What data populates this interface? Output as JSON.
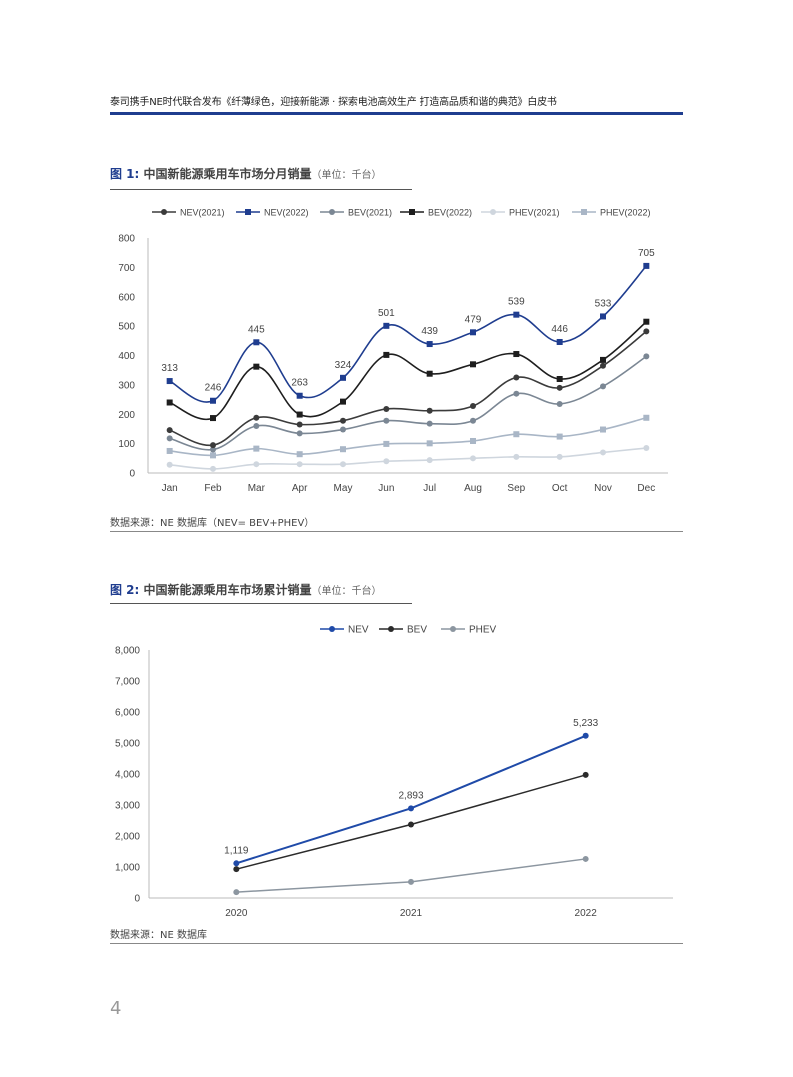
{
  "header": {
    "title": "泰司携手NE时代联合发布《纤薄绿色，迎接新能源 · 探索电池高效生产 打造高品质和谐的典范》白皮书"
  },
  "figure1": {
    "label": "图 1:",
    "title": "中国新能源乘用车市场分月销量",
    "unit": "（单位：千台）",
    "source": "数据来源：NE 数据库（NEV= BEV+PHEV）"
  },
  "figure2": {
    "label": "图 2:",
    "title": "中国新能源乘用车市场累计销量",
    "unit": "（单位：千台）",
    "source": "数据来源：NE 数据库"
  },
  "page_number": "4",
  "colors": {
    "nev2022": "#1f3d8f",
    "nev2021": "#3b3b3b",
    "bev2021": "#7b8794",
    "bev2022": "#1e1e1e",
    "phev2021": "#cfd6de",
    "phev2022": "#a9b6c6",
    "nev": "#1f4aa8",
    "bev": "#2b2b2b",
    "phev": "#8c96a0",
    "accent": "#1f3d8f"
  },
  "chart_data": [
    {
      "type": "line",
      "title": "中国新能源乘用车市场分月销量",
      "categories": [
        "Jan",
        "Feb",
        "Mar",
        "Apr",
        "May",
        "Jun",
        "Jul",
        "Aug",
        "Sep",
        "Oct",
        "Nov",
        "Dec"
      ],
      "ylim": [
        0,
        800
      ],
      "yticks": [
        "0",
        "100",
        "200",
        "300",
        "400",
        "500",
        "600",
        "700",
        "800"
      ],
      "legend": "top",
      "grid": false,
      "series": [
        {
          "name": "NEV(2021)",
          "marker": "circle",
          "labeled": false,
          "values": [
            146,
            95,
            188,
            165,
            178,
            218,
            212,
            228,
            325,
            290,
            365,
            482
          ]
        },
        {
          "name": "NEV(2022)",
          "marker": "square",
          "labeled": true,
          "values": [
            313,
            246,
            445,
            263,
            324,
            501,
            439,
            479,
            539,
            446,
            533,
            705
          ]
        },
        {
          "name": "BEV(2021)",
          "marker": "circle",
          "labeled": false,
          "values": [
            118,
            80,
            160,
            135,
            148,
            178,
            168,
            178,
            270,
            235,
            295,
            397
          ]
        },
        {
          "name": "BEV(2022)",
          "marker": "square",
          "labeled": false,
          "values": [
            240,
            187,
            362,
            199,
            243,
            402,
            338,
            370,
            405,
            320,
            385,
            515
          ]
        },
        {
          "name": "PHEV(2021)",
          "marker": "circle",
          "labeled": false,
          "values": [
            28,
            14,
            30,
            30,
            30,
            40,
            44,
            50,
            55,
            55,
            70,
            85
          ]
        },
        {
          "name": "PHEV(2022)",
          "marker": "square",
          "labeled": false,
          "values": [
            75,
            60,
            83,
            64,
            81,
            99,
            101,
            109,
            132,
            124,
            148,
            188
          ]
        }
      ]
    },
    {
      "type": "line",
      "title": "中国新能源乘用车市场累计销量",
      "categories": [
        "2020",
        "2021",
        "2022"
      ],
      "ylim": [
        0,
        8000
      ],
      "yticks": [
        "0",
        "1,000",
        "2,000",
        "3,000",
        "4,000",
        "5,000",
        "6,000",
        "7,000",
        "8,000"
      ],
      "legend": "top",
      "grid": false,
      "series": [
        {
          "name": "NEV",
          "marker": "circle",
          "labeled": true,
          "values": [
            1119,
            2893,
            5233
          ],
          "labels": [
            "1,119",
            "2,893",
            "5,233"
          ]
        },
        {
          "name": "BEV",
          "marker": "circle",
          "labeled": false,
          "values": [
            930,
            2370,
            3970
          ]
        },
        {
          "name": "PHEV",
          "marker": "circle",
          "labeled": false,
          "values": [
            190,
            520,
            1260
          ]
        }
      ]
    }
  ]
}
